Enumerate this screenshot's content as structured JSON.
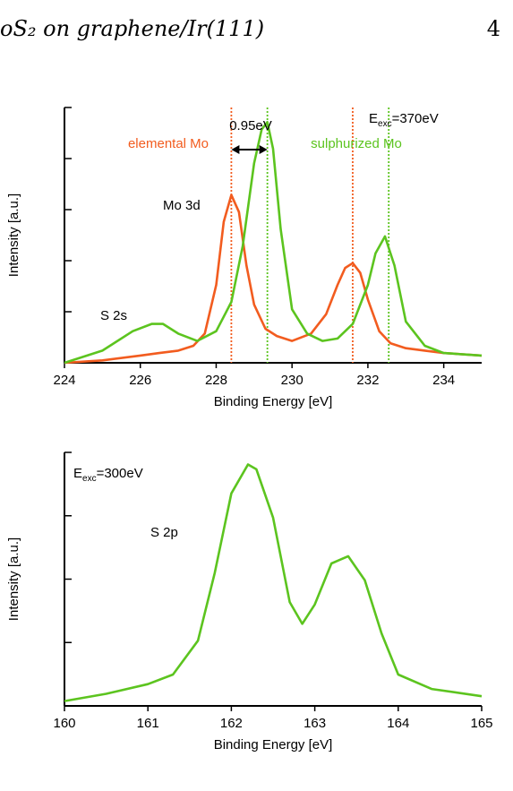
{
  "header": {
    "title": "oS₂ on graphene/Ir(111)",
    "page_number": "4"
  },
  "chart_data": [
    {
      "type": "line",
      "xlabel": "Binding Energy [eV]",
      "ylabel": "Intensity [a.u.]",
      "xlim": [
        224,
        235
      ],
      "ylim": [
        0,
        1.05
      ],
      "xticks": [
        224,
        226,
        228,
        230,
        232,
        234
      ],
      "xtick_labels": [
        "224",
        "226",
        "228",
        "230",
        "232",
        "234"
      ],
      "grid": false,
      "annotations": {
        "energy": "E",
        "energy_sub": "exc",
        "energy_value": "=370eV",
        "shift": "0.95eV",
        "elemental": "elemental Mo",
        "sulphurized": "sulphurized Mo",
        "mo3d": "Mo 3d",
        "s2s": "S 2s"
      },
      "vlines": [
        {
          "x": 228.4,
          "color": "#f25c1f"
        },
        {
          "x": 229.35,
          "color": "#5cc41f"
        },
        {
          "x": 231.6,
          "color": "#f25c1f"
        },
        {
          "x": 232.55,
          "color": "#5cc41f"
        }
      ],
      "series": [
        {
          "color": "#f25c1f",
          "x": [
            224,
            225,
            226,
            226.5,
            227,
            227.4,
            227.7,
            228.0,
            228.2,
            228.4,
            228.6,
            228.8,
            229.0,
            229.3,
            229.6,
            230.0,
            230.5,
            230.9,
            231.2,
            231.4,
            231.6,
            231.8,
            232.0,
            232.3,
            232.6,
            233.0,
            233.5,
            234.0,
            235.0
          ],
          "y": [
            0.0,
            0.01,
            0.03,
            0.04,
            0.05,
            0.07,
            0.12,
            0.32,
            0.58,
            0.69,
            0.62,
            0.4,
            0.24,
            0.14,
            0.11,
            0.09,
            0.12,
            0.2,
            0.32,
            0.39,
            0.41,
            0.37,
            0.26,
            0.13,
            0.08,
            0.06,
            0.05,
            0.04,
            0.03
          ]
        },
        {
          "color": "#5cc41f",
          "x": [
            224,
            225,
            225.8,
            226.3,
            226.6,
            227.0,
            227.5,
            228.0,
            228.4,
            228.7,
            229.0,
            229.2,
            229.35,
            229.5,
            229.7,
            230.0,
            230.4,
            230.8,
            231.2,
            231.6,
            232.0,
            232.2,
            232.45,
            232.7,
            233.0,
            233.5,
            234.0,
            235.0
          ],
          "y": [
            0.0,
            0.05,
            0.13,
            0.16,
            0.16,
            0.12,
            0.09,
            0.13,
            0.25,
            0.48,
            0.82,
            0.96,
            0.99,
            0.88,
            0.55,
            0.22,
            0.12,
            0.09,
            0.1,
            0.16,
            0.32,
            0.45,
            0.52,
            0.4,
            0.17,
            0.07,
            0.04,
            0.03
          ]
        }
      ]
    },
    {
      "type": "line",
      "xlabel": "Binding Energy [eV]",
      "ylabel": "Intensity [a.u.]",
      "xlim": [
        160,
        165
      ],
      "ylim": [
        0,
        1.05
      ],
      "xticks": [
        160,
        161,
        162,
        163,
        164,
        165
      ],
      "xtick_labels": [
        "160",
        "161",
        "162",
        "163",
        "164",
        "165"
      ],
      "grid": false,
      "annotations": {
        "energy": "E",
        "energy_sub": "exc",
        "energy_value": "=300eV",
        "s2p": "S 2p"
      },
      "series": [
        {
          "color": "#5cc41f",
          "x": [
            160,
            160.5,
            161,
            161.3,
            161.6,
            161.8,
            162.0,
            162.2,
            162.3,
            162.5,
            162.7,
            162.85,
            163.0,
            163.2,
            163.4,
            163.6,
            163.8,
            164.0,
            164.4,
            165.0
          ],
          "y": [
            0.02,
            0.05,
            0.09,
            0.13,
            0.27,
            0.55,
            0.88,
            1.0,
            0.98,
            0.78,
            0.43,
            0.34,
            0.42,
            0.59,
            0.62,
            0.52,
            0.3,
            0.13,
            0.07,
            0.04
          ]
        }
      ]
    }
  ]
}
